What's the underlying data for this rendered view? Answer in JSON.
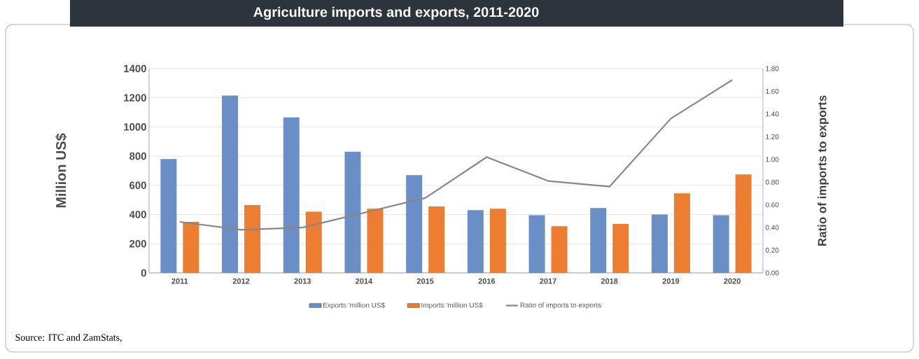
{
  "chart_data": {
    "type": "bar",
    "title": "Agriculture imports and exports, 2011-2020",
    "categories": [
      "2011",
      "2012",
      "2013",
      "2014",
      "2015",
      "2016",
      "2017",
      "2018",
      "2019",
      "2020"
    ],
    "series": [
      {
        "name": "Exports 'million US$",
        "color": "#6a8fc7",
        "values": [
          780,
          1215,
          1065,
          830,
          670,
          430,
          395,
          445,
          400,
          395
        ]
      },
      {
        "name": "Imports 'million US$",
        "color": "#ed7d31",
        "values": [
          350,
          465,
          420,
          440,
          455,
          440,
          320,
          335,
          545,
          675
        ]
      },
      {
        "name": "Ratio of imports to exports",
        "type": "line",
        "axis": "y2",
        "color": "#8c8585",
        "values": [
          0.45,
          0.38,
          0.4,
          0.53,
          0.66,
          1.02,
          0.81,
          0.76,
          1.36,
          1.7
        ]
      }
    ],
    "ylabel": "Million US$",
    "y2label": "Ratio of imports to exports",
    "ylim": [
      0,
      1400
    ],
    "yticks": [
      0,
      200,
      400,
      600,
      800,
      1000,
      1200,
      1400
    ],
    "y2lim": [
      0,
      1.8
    ],
    "y2ticks": [
      {
        "value": 0,
        "label": "0.00"
      },
      {
        "value": 0.2,
        "label": "0.20"
      },
      {
        "value": 0.4,
        "label": "0.40"
      },
      {
        "value": 0.6,
        "label": "0.60"
      },
      {
        "value": 0.8,
        "label": "0.80"
      },
      {
        "value": 1.0,
        "label": "1.00"
      },
      {
        "value": 1.2,
        "label": "1.20"
      },
      {
        "value": 1.4,
        "label": "1.40"
      },
      {
        "value": 1.6,
        "label": "1.60"
      },
      {
        "value": 1.8,
        "label": "1.80"
      }
    ],
    "grid": "y",
    "legend": "bottom",
    "marker": "none",
    "annotations": [
      "Source: ITC and ZamStats,"
    ]
  }
}
